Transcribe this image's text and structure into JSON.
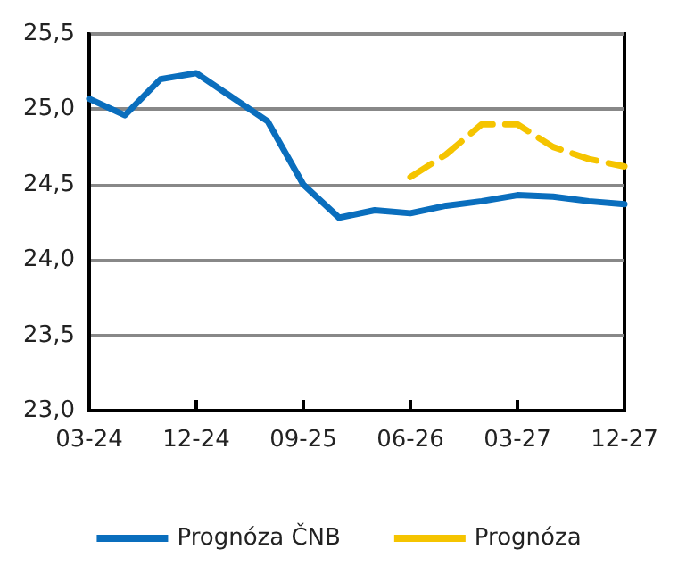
{
  "chart_data": {
    "type": "line",
    "categories": [
      "03-24",
      null,
      null,
      "12-24",
      null,
      null,
      "09-25",
      null,
      null,
      "06-26",
      null,
      null,
      "03-27",
      null,
      null,
      "12-27"
    ],
    "series": [
      {
        "name": "Prognóza ČNB",
        "color": "#0a6ebd",
        "line_style": "solid",
        "values": [
          25.07,
          24.96,
          25.2,
          25.24,
          25.08,
          24.92,
          24.5,
          24.28,
          24.33,
          24.31,
          24.36,
          24.39,
          24.43,
          24.42,
          24.39,
          24.37
        ]
      },
      {
        "name": "Prognóza",
        "color": "#f5c400",
        "line_style": "dashed",
        "values": [
          null,
          null,
          null,
          null,
          null,
          null,
          null,
          null,
          null,
          24.55,
          24.7,
          24.9,
          24.9,
          24.75,
          24.67,
          24.62
        ]
      }
    ],
    "ylim": [
      23,
      25.5
    ],
    "yticks": [
      {
        "value": 23,
        "label": "23,0"
      },
      {
        "value": 23.5,
        "label": "23,5"
      },
      {
        "value": 24,
        "label": "24,0"
      },
      {
        "value": 24.5,
        "label": "24,5"
      },
      {
        "value": 25,
        "label": "25,0"
      },
      {
        "value": 25.5,
        "label": "25,5"
      }
    ],
    "grid": "y",
    "legend": "bottom",
    "marker": "none"
  }
}
